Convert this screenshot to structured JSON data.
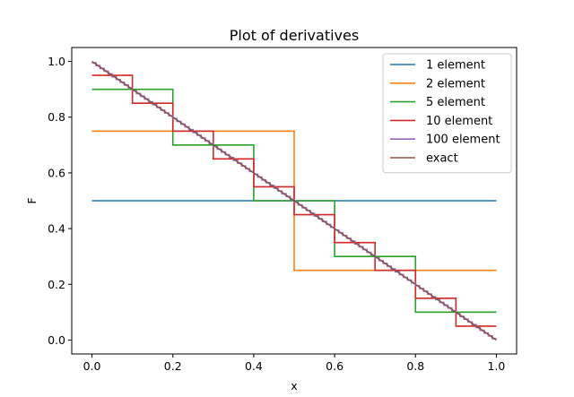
{
  "chart_data": {
    "type": "line",
    "title": "Plot of derivatives",
    "xlabel": "x",
    "ylabel": "F",
    "xlim": [
      -0.05,
      1.05
    ],
    "ylim": [
      -0.05,
      1.05
    ],
    "xticks": [
      0.0,
      0.2,
      0.4,
      0.6,
      0.8,
      1.0
    ],
    "xtick_labels": [
      "0.0",
      "0.2",
      "0.4",
      "0.6",
      "0.8",
      "1.0"
    ],
    "yticks": [
      0.0,
      0.2,
      0.4,
      0.6,
      0.8,
      1.0
    ],
    "ytick_labels": [
      "0.0",
      "0.2",
      "0.4",
      "0.6",
      "0.8",
      "1.0"
    ],
    "grid": false,
    "legend_position": "top-right",
    "series": [
      {
        "name": "1 element",
        "color": "#1f77b4",
        "style": "piecewise-constant",
        "n": 1
      },
      {
        "name": "2 element",
        "color": "#ff7f0e",
        "style": "piecewise-constant",
        "n": 2
      },
      {
        "name": "5 element",
        "color": "#2ca02c",
        "style": "piecewise-constant",
        "n": 5
      },
      {
        "name": "10 element",
        "color": "#d62728",
        "style": "piecewise-constant",
        "n": 10
      },
      {
        "name": "100 element",
        "color": "#9467bd",
        "style": "piecewise-constant",
        "n": 100
      },
      {
        "name": "exact",
        "color": "#8c564b",
        "style": "line",
        "x": [
          0.0,
          1.0
        ],
        "y": [
          1.0,
          0.0
        ]
      }
    ]
  }
}
